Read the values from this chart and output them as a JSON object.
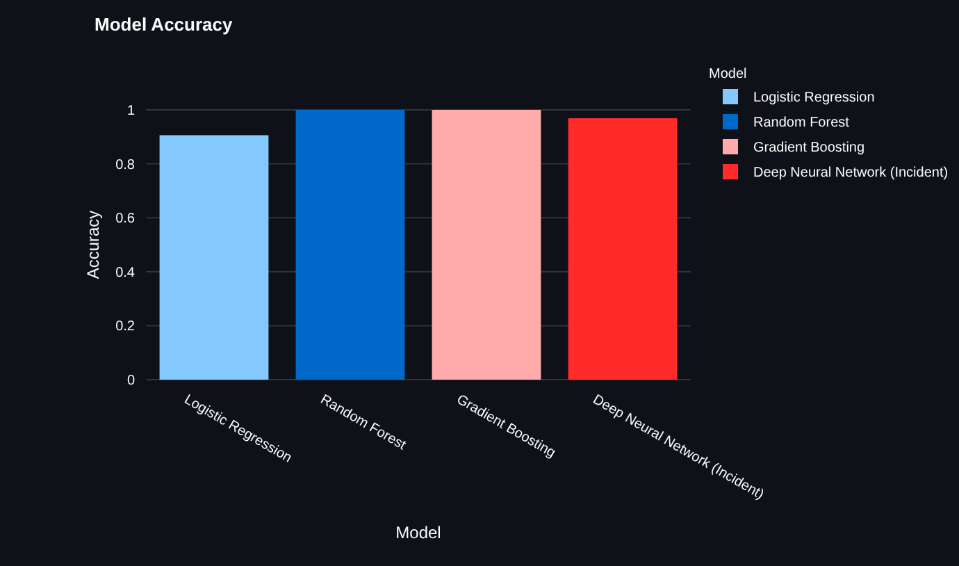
{
  "chart_data": {
    "type": "bar",
    "title": "Model Accuracy",
    "xlabel": "Model",
    "ylabel": "Accuracy",
    "legend_title": "Model",
    "categories": [
      "Logistic Regression",
      "Random Forest",
      "Gradient Boosting",
      "Deep Neural Network (Incident)"
    ],
    "series": [
      {
        "name": "Logistic Regression",
        "color": "#83c9ff",
        "values": [
          0.906,
          null,
          null,
          null
        ]
      },
      {
        "name": "Random Forest",
        "color": "#0068c9",
        "values": [
          null,
          1,
          null,
          null
        ]
      },
      {
        "name": "Gradient Boosting",
        "color": "#ffabab",
        "values": [
          null,
          null,
          1,
          null
        ]
      },
      {
        "name": "Deep Neural Network (Incident)",
        "color": "#ff2b2b",
        "values": [
          null,
          null,
          null,
          0.969
        ]
      }
    ],
    "ylim": [
      0,
      1
    ],
    "yticks": [
      0,
      0.2,
      0.4,
      0.6,
      0.8,
      1
    ],
    "grid": "y",
    "legend": "top right"
  }
}
